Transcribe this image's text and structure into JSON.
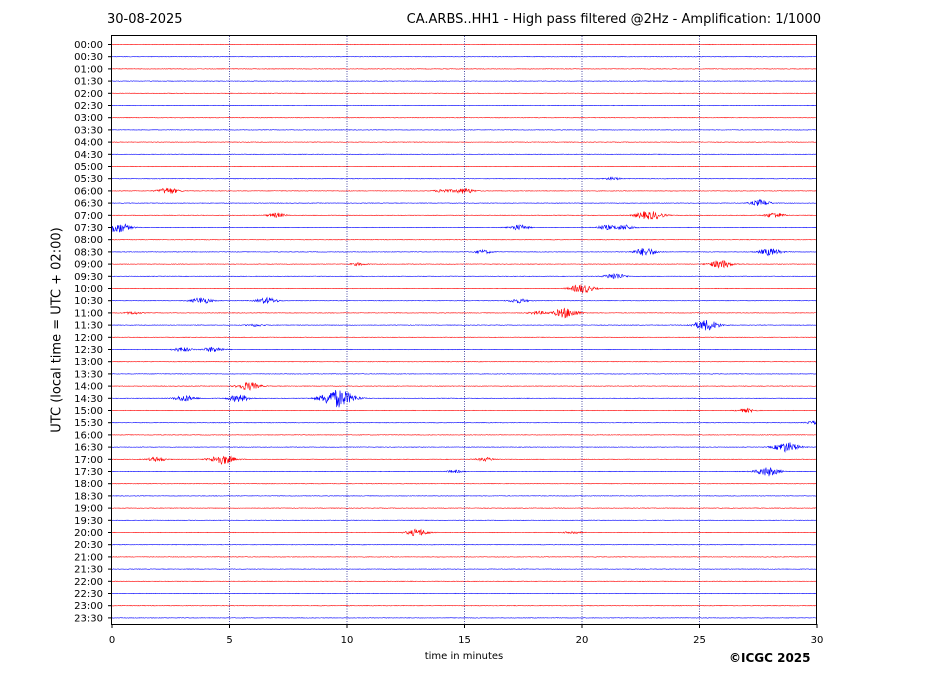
{
  "header": {
    "date": "30-08-2025",
    "title": "CA.ARBS..HH1 - High pass filtered @2Hz - Amplification: 1/1000"
  },
  "footer": {
    "copyright": "©ICGC 2025"
  },
  "colors": {
    "trace_a": "#ff0000",
    "trace_b": "#0000ff",
    "frame": "#000000",
    "grid": "#000080"
  },
  "chart_data": {
    "type": "line",
    "title": "CA.ARBS..HH1 - High pass filtered @2Hz - Amplification: 1/1000",
    "xlabel": "time in minutes",
    "ylabel": "UTC (local time = UTC + 02:00)",
    "xlim": [
      0,
      30
    ],
    "x_ticks": [
      0,
      5,
      10,
      15,
      20,
      25,
      30
    ],
    "grid": "vertical dotted lines at 5, 10, 15, 20, 25 minutes",
    "rows": [
      "00:00",
      "00:30",
      "01:00",
      "01:30",
      "02:00",
      "02:30",
      "03:00",
      "03:30",
      "04:00",
      "04:30",
      "05:00",
      "05:30",
      "06:00",
      "06:30",
      "07:00",
      "07:30",
      "08:00",
      "08:30",
      "09:00",
      "09:30",
      "10:00",
      "10:30",
      "11:00",
      "11:30",
      "12:00",
      "12:30",
      "13:00",
      "13:30",
      "14:00",
      "14:30",
      "15:00",
      "15:30",
      "16:00",
      "16:30",
      "17:00",
      "17:30",
      "18:00",
      "18:30",
      "19:00",
      "19:30",
      "20:00",
      "20:30",
      "21:00",
      "21:30",
      "22:00",
      "22:30",
      "23:00",
      "23:30"
    ],
    "row_colors": "alternating red (00:00, 01:00, ...) and blue (00:30, 01:30, ...)",
    "events": [
      {
        "row": "05:30",
        "minute": 21.3,
        "amplitude": 0.15
      },
      {
        "row": "06:00",
        "minute": 2.4,
        "amplitude": 0.35
      },
      {
        "row": "06:00",
        "minute": 14.1,
        "amplitude": 0.2
      },
      {
        "row": "06:00",
        "minute": 15.0,
        "amplitude": 0.3
      },
      {
        "row": "06:30",
        "minute": 27.6,
        "amplitude": 0.35
      },
      {
        "row": "07:00",
        "minute": 7.0,
        "amplitude": 0.25
      },
      {
        "row": "07:00",
        "minute": 22.6,
        "amplitude": 0.3
      },
      {
        "row": "07:00",
        "minute": 23.1,
        "amplitude": 0.35
      },
      {
        "row": "07:00",
        "minute": 28.2,
        "amplitude": 0.3
      },
      {
        "row": "07:30",
        "minute": 0.2,
        "amplitude": 0.6
      },
      {
        "row": "07:30",
        "minute": 17.3,
        "amplitude": 0.3
      },
      {
        "row": "07:30",
        "minute": 21.0,
        "amplitude": 0.25
      },
      {
        "row": "07:30",
        "minute": 21.8,
        "amplitude": 0.3
      },
      {
        "row": "08:30",
        "minute": 22.7,
        "amplitude": 0.45
      },
      {
        "row": "08:30",
        "minute": 28.0,
        "amplitude": 0.4
      },
      {
        "row": "08:30",
        "minute": 15.8,
        "amplitude": 0.2
      },
      {
        "row": "09:00",
        "minute": 25.9,
        "amplitude": 0.45
      },
      {
        "row": "09:00",
        "minute": 10.5,
        "amplitude": 0.15
      },
      {
        "row": "09:30",
        "minute": 21.4,
        "amplitude": 0.35
      },
      {
        "row": "10:00",
        "minute": 20.0,
        "amplitude": 0.5
      },
      {
        "row": "10:30",
        "minute": 3.8,
        "amplitude": 0.35
      },
      {
        "row": "10:30",
        "minute": 6.6,
        "amplitude": 0.35
      },
      {
        "row": "10:30",
        "minute": 17.3,
        "amplitude": 0.25
      },
      {
        "row": "11:00",
        "minute": 19.3,
        "amplitude": 0.55
      },
      {
        "row": "11:00",
        "minute": 18.1,
        "amplitude": 0.2
      },
      {
        "row": "11:00",
        "minute": 0.9,
        "amplitude": 0.15
      },
      {
        "row": "11:30",
        "minute": 25.3,
        "amplitude": 0.6
      },
      {
        "row": "11:30",
        "minute": 6.1,
        "amplitude": 0.15
      },
      {
        "row": "12:30",
        "minute": 3.0,
        "amplitude": 0.25
      },
      {
        "row": "12:30",
        "minute": 4.3,
        "amplitude": 0.3
      },
      {
        "row": "14:00",
        "minute": 5.8,
        "amplitude": 0.45
      },
      {
        "row": "14:30",
        "minute": 3.1,
        "amplitude": 0.35
      },
      {
        "row": "14:30",
        "minute": 5.4,
        "amplitude": 0.4
      },
      {
        "row": "14:30",
        "minute": 9.6,
        "amplitude": 1.0
      },
      {
        "row": "15:00",
        "minute": 27.0,
        "amplitude": 0.2
      },
      {
        "row": "15:30",
        "minute": 29.9,
        "amplitude": 0.2
      },
      {
        "row": "16:30",
        "minute": 28.7,
        "amplitude": 0.55
      },
      {
        "row": "17:00",
        "minute": 4.7,
        "amplitude": 0.55
      },
      {
        "row": "17:00",
        "minute": 1.9,
        "amplitude": 0.25
      },
      {
        "row": "17:00",
        "minute": 15.9,
        "amplitude": 0.2
      },
      {
        "row": "17:30",
        "minute": 27.9,
        "amplitude": 0.5
      },
      {
        "row": "17:30",
        "minute": 14.6,
        "amplitude": 0.15
      },
      {
        "row": "20:00",
        "minute": 13.0,
        "amplitude": 0.4
      },
      {
        "row": "20:00",
        "minute": 19.6,
        "amplitude": 0.15
      }
    ]
  }
}
